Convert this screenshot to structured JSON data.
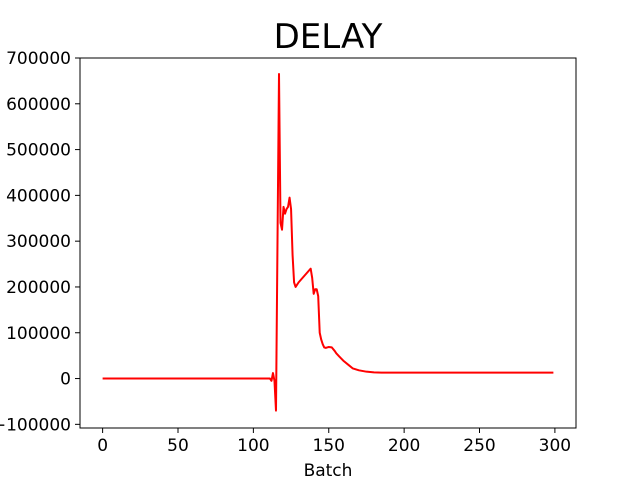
{
  "chart_data": {
    "type": "line",
    "title": "DELAY",
    "xlabel": "Batch",
    "ylabel": "",
    "xlim": [
      -15,
      314
    ],
    "ylim": [
      -108000,
      700000
    ],
    "x_ticks": [
      0,
      50,
      100,
      150,
      200,
      250,
      300
    ],
    "y_ticks": [
      -100000,
      0,
      100000,
      200000,
      300000,
      400000,
      500000,
      600000,
      700000
    ],
    "y_tick_labels": [
      "−100000",
      "0",
      "100000",
      "200000",
      "300000",
      "400000",
      "500000",
      "600000",
      "700000"
    ],
    "grid": false,
    "series": [
      {
        "name": "",
        "color": "#ff0000",
        "x": [
          0,
          110,
          111,
          112,
          113,
          114,
          115,
          116,
          117,
          118,
          119,
          120,
          121,
          122,
          123,
          124,
          125,
          126,
          127,
          128,
          130,
          134,
          138,
          139,
          140,
          141,
          142,
          143,
          144,
          145,
          146,
          147,
          148,
          149,
          150,
          152,
          154,
          155,
          157,
          160,
          163,
          166,
          170,
          175,
          180,
          185,
          190,
          200,
          250,
          299
        ],
        "y": [
          0,
          0,
          0,
          -5000,
          12000,
          -5000,
          -70000,
          300000,
          665000,
          340000,
          325000,
          375000,
          360000,
          370000,
          375000,
          395000,
          370000,
          270000,
          210000,
          200000,
          210000,
          225000,
          240000,
          220000,
          185000,
          195000,
          195000,
          180000,
          100000,
          85000,
          75000,
          68000,
          67000,
          68000,
          69000,
          68000,
          60000,
          55000,
          48000,
          38000,
          30000,
          22000,
          18000,
          15000,
          13500,
          13000,
          12800,
          12800,
          12800,
          12800
        ]
      }
    ]
  }
}
